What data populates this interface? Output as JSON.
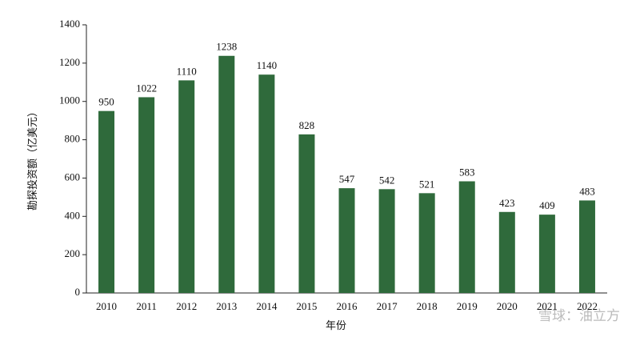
{
  "chart_data": {
    "type": "bar",
    "x_label": "年份",
    "y_label": "勘探投资额（亿美元）",
    "categories": [
      "2010",
      "2011",
      "2012",
      "2013",
      "2014",
      "2015",
      "2016",
      "2017",
      "2018",
      "2019",
      "2020",
      "2021",
      "2022"
    ],
    "values": [
      950,
      1022,
      1110,
      1238,
      1140,
      828,
      547,
      542,
      521,
      583,
      423,
      409,
      483
    ],
    "color": "#2f6a3b",
    "ylim": [
      0,
      1400
    ],
    "yticks": [
      0,
      200,
      400,
      600,
      800,
      1000,
      1200,
      1400
    ],
    "grid": false
  },
  "watermark": "雪球：油立方"
}
